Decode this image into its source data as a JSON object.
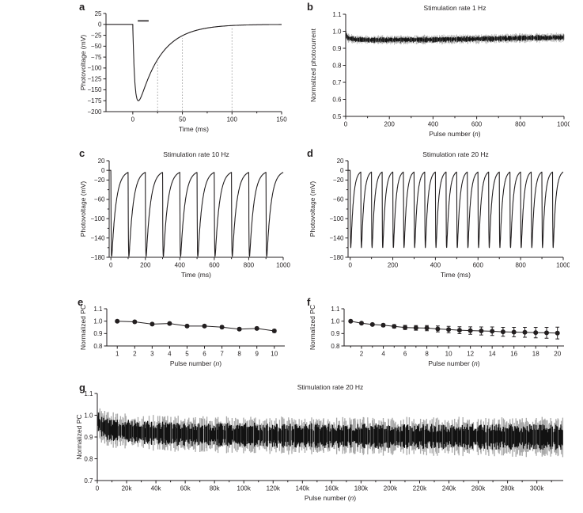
{
  "figure": {
    "background": "#ffffff",
    "ink_color": "#231f20",
    "band_gray": "#adadad",
    "band_black": "#161616",
    "guide_gray": "#9a9a9a"
  },
  "chart_data": [
    {
      "panel": "a",
      "type": "line",
      "subtype": "single_transient",
      "title": "",
      "xlabel": "Time (ms)",
      "ylabel": "Photovoltage (mV)",
      "xlim": [
        -27,
        150
      ],
      "ylim": [
        -200,
        25
      ],
      "xticks": [
        0,
        50,
        100,
        150
      ],
      "xtick_labels": [
        "0",
        "50",
        "100",
        "150"
      ],
      "xminor": [
        25,
        75,
        125
      ],
      "yticks": [
        25,
        0,
        -25,
        -50,
        -75,
        -100,
        -125,
        -150,
        -175,
        -200
      ],
      "ytick_labels": [
        "25",
        "0",
        "−25",
        "−50",
        "−75",
        "−100",
        "−125",
        "−150",
        "−175",
        "−200"
      ],
      "yminor": [],
      "dotted_vlines": [
        25,
        50,
        100
      ],
      "stim_bar": {
        "x1": 5,
        "x2": 16,
        "y": 8
      },
      "pulse": {
        "onset": 0,
        "interval": 1000,
        "count": 1,
        "peak_mv": -175,
        "tau_rise_ms": 2.2,
        "tau_decay_ms": 22
      }
    },
    {
      "panel": "b",
      "type": "scatter",
      "subtype": "noisy_band",
      "title": "Stimulation rate 1 Hz",
      "xlabel": "Pulse number (n)",
      "ylabel": "Normalized photocurrent",
      "xlim": [
        0,
        1000
      ],
      "ylim": [
        0.5,
        1.1
      ],
      "xticks": [
        0,
        200,
        400,
        600,
        800,
        1000
      ],
      "xtick_labels": [
        "0",
        "200",
        "400",
        "600",
        "800",
        "1000"
      ],
      "xminor": [
        100,
        300,
        500,
        700,
        900
      ],
      "yticks": [
        1.1,
        1.0,
        0.9,
        0.8,
        0.7,
        0.6,
        0.5
      ],
      "ytick_labels": [
        "1.1",
        "1.0",
        "0.9",
        "0.8",
        "0.7",
        "0.6",
        "0.5"
      ],
      "yminor": [],
      "center": [
        [
          0,
          0.988
        ],
        [
          8,
          0.962
        ],
        [
          40,
          0.952
        ],
        [
          120,
          0.949
        ],
        [
          300,
          0.95
        ],
        [
          500,
          0.953
        ],
        [
          700,
          0.957
        ],
        [
          1000,
          0.964
        ]
      ],
      "layers": [
        {
          "color": "#b4b4b4",
          "halfwidth": [
            [
              0,
              0.02
            ],
            [
              1000,
              0.021
            ]
          ]
        },
        {
          "color": "#161616",
          "halfwidth": [
            [
              0,
              0.012
            ],
            [
              1000,
              0.013
            ]
          ]
        }
      ]
    },
    {
      "panel": "c",
      "type": "line",
      "subtype": "pulse_train",
      "title": "Stimulation rate 10 Hz",
      "xlabel": "Time (ms)",
      "ylabel": "Photovoltage (mV)",
      "xlim": [
        -10,
        1000
      ],
      "ylim": [
        -180,
        20
      ],
      "xticks": [
        0,
        200,
        400,
        600,
        800,
        1000
      ],
      "xtick_labels": [
        "0",
        "200",
        "400",
        "600",
        "800",
        "1000"
      ],
      "xminor": [
        100,
        300,
        500,
        700,
        900
      ],
      "yticks": [
        20,
        0,
        -20,
        -60,
        -100,
        -140,
        -180
      ],
      "ytick_labels": [
        "20",
        "0",
        "−20",
        "−60",
        "−100",
        "−140",
        "−180"
      ],
      "yminor": [
        -40,
        -80,
        -120,
        -160
      ],
      "pulse": {
        "onset": 0,
        "interval": 100,
        "count": 10,
        "peak_mv": -178,
        "tau_rise_ms": 1.5,
        "tau_decay_ms": 25
      }
    },
    {
      "panel": "d",
      "type": "line",
      "subtype": "pulse_train",
      "title": "Stimulation rate 20 Hz",
      "xlabel": "Time (ms)",
      "ylabel": "Photovoltage (mV)",
      "xlim": [
        -10,
        1000
      ],
      "ylim": [
        -180,
        20
      ],
      "xticks": [
        0,
        200,
        400,
        600,
        800,
        1000
      ],
      "xtick_labels": [
        "0",
        "200",
        "400",
        "600",
        "800",
        "1000"
      ],
      "xminor": [
        100,
        300,
        500,
        700,
        900
      ],
      "yticks": [
        20,
        0,
        -20,
        -60,
        -100,
        -140,
        -180
      ],
      "ytick_labels": [
        "20",
        "0",
        "−20",
        "−60",
        "−100",
        "−140",
        "−180"
      ],
      "yminor": [
        -40,
        -80,
        -120,
        -160
      ],
      "pulse": {
        "onset": 0,
        "interval": 50,
        "count": 20,
        "peak_mv": -160,
        "tau_rise_ms": 1,
        "tau_decay_ms": 12
      }
    },
    {
      "panel": "e",
      "type": "scatter",
      "subtype": "points_errorbars",
      "title": "",
      "xlabel": "Pulse number (n)",
      "ylabel": "Normalized PC",
      "xlim": [
        0.4,
        10.6
      ],
      "ylim": [
        0.8,
        1.1
      ],
      "xticks": [
        1,
        2,
        3,
        4,
        5,
        6,
        7,
        8,
        9,
        10
      ],
      "xtick_labels": [
        "1",
        "2",
        "3",
        "4",
        "5",
        "6",
        "7",
        "8",
        "9",
        "10"
      ],
      "xminor": [],
      "yticks": [
        1.1,
        1.0,
        0.9,
        0.8
      ],
      "ytick_labels": [
        "1.1",
        "1.0",
        "0.9",
        "0.8"
      ],
      "yminor": [],
      "x": [
        1,
        2,
        3,
        4,
        5,
        6,
        7,
        8,
        9,
        10
      ],
      "y": [
        1.0,
        0.995,
        0.976,
        0.981,
        0.96,
        0.96,
        0.952,
        0.936,
        0.941,
        0.921
      ],
      "yerr": [
        0.006,
        0.008,
        0.008,
        0.01,
        0.008,
        0.01,
        0.01,
        0.01,
        0.01,
        0.012
      ]
    },
    {
      "panel": "f",
      "type": "scatter",
      "subtype": "points_errorbars",
      "title": "",
      "xlabel": "Pulse number (n)",
      "ylabel": "Normalized PC",
      "xlim": [
        0.4,
        20.6
      ],
      "ylim": [
        0.8,
        1.1
      ],
      "xticks": [
        2,
        4,
        6,
        8,
        10,
        12,
        14,
        16,
        18,
        20
      ],
      "xtick_labels": [
        "2",
        "4",
        "6",
        "8",
        "10",
        "12",
        "14",
        "16",
        "18",
        "20"
      ],
      "xminor": [
        1,
        3,
        5,
        7,
        9,
        11,
        13,
        15,
        17,
        19
      ],
      "yticks": [
        1.1,
        1.0,
        0.9,
        0.8
      ],
      "ytick_labels": [
        "1.1",
        "1.0",
        "0.9",
        "0.8"
      ],
      "yminor": [],
      "x": [
        1,
        2,
        3,
        4,
        5,
        6,
        7,
        8,
        9,
        10,
        11,
        12,
        13,
        14,
        15,
        16,
        17,
        18,
        19,
        20
      ],
      "y": [
        1.0,
        0.984,
        0.973,
        0.967,
        0.958,
        0.949,
        0.946,
        0.944,
        0.937,
        0.932,
        0.927,
        0.924,
        0.921,
        0.919,
        0.914,
        0.912,
        0.91,
        0.908,
        0.906,
        0.904
      ],
      "yerr": [
        0.004,
        0.007,
        0.009,
        0.011,
        0.014,
        0.017,
        0.019,
        0.021,
        0.024,
        0.026,
        0.028,
        0.03,
        0.032,
        0.034,
        0.036,
        0.038,
        0.04,
        0.042,
        0.044,
        0.047
      ]
    },
    {
      "panel": "g",
      "type": "scatter",
      "subtype": "noisy_band",
      "title": "Stimulation rate 20 Hz",
      "xlabel": "Pulse number (n)",
      "ylabel": "Normalized PC",
      "xlim": [
        0,
        318000
      ],
      "ylim": [
        0.7,
        1.1
      ],
      "xticks": [
        0,
        20000,
        40000,
        60000,
        80000,
        100000,
        120000,
        140000,
        160000,
        180000,
        200000,
        220000,
        240000,
        260000,
        280000,
        300000
      ],
      "xtick_labels": [
        "0",
        "20k",
        "40k",
        "60k",
        "80k",
        "100k",
        "120k",
        "140k",
        "160k",
        "180k",
        "200k",
        "220k",
        "240k",
        "260k",
        "280k",
        "300k"
      ],
      "xminor": [
        10000,
        30000,
        50000,
        70000,
        90000,
        110000,
        130000,
        150000,
        170000,
        190000,
        210000,
        230000,
        250000,
        270000,
        290000,
        310000
      ],
      "yticks": [
        1.1,
        1.0,
        0.9,
        0.8,
        0.7
      ],
      "ytick_labels": [
        "1.1",
        "1.0",
        "0.9",
        "0.8",
        "0.7"
      ],
      "yminor": [],
      "center": [
        [
          0,
          0.978
        ],
        [
          3000,
          0.947
        ],
        [
          10000,
          0.932
        ],
        [
          30000,
          0.921
        ],
        [
          60000,
          0.913
        ],
        [
          120000,
          0.907
        ],
        [
          200000,
          0.903
        ],
        [
          318000,
          0.899
        ]
      ],
      "layers": [
        {
          "color": "#a9a9a9",
          "halfwidth": [
            [
              0,
              0.052
            ],
            [
              10000,
              0.06
            ],
            [
              60000,
              0.062
            ],
            [
              318000,
              0.068
            ]
          ]
        },
        {
          "color": "#121212",
          "halfwidth": [
            [
              0,
              0.034
            ],
            [
              10000,
              0.039
            ],
            [
              318000,
              0.044
            ]
          ]
        }
      ]
    }
  ]
}
